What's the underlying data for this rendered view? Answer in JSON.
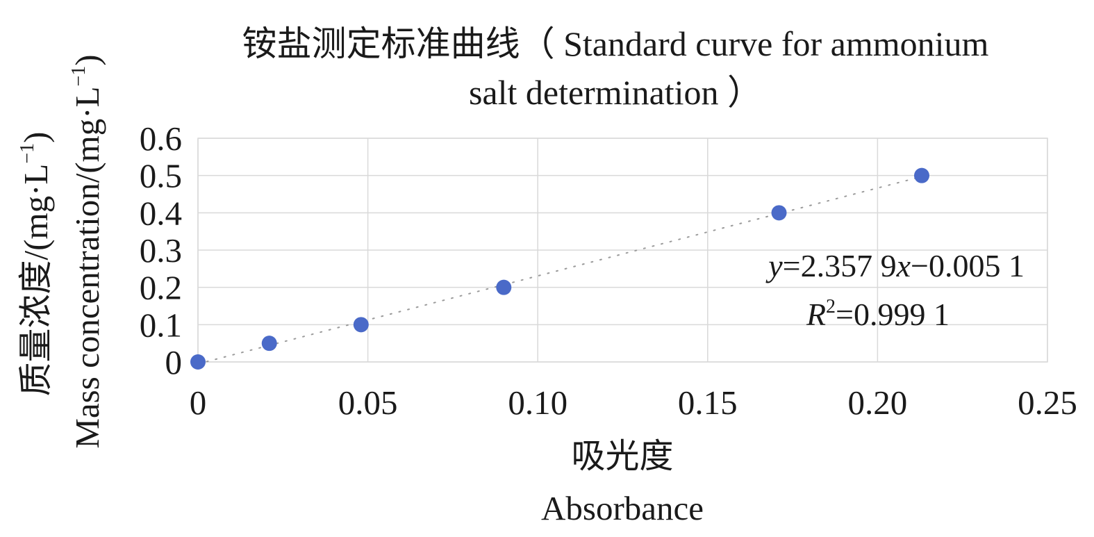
{
  "chart_data": {
    "type": "scatter",
    "title": "铵盐测定标准曲线（ Standard curve for ammonium salt determination ）",
    "title_lines": [
      "铵盐测定标准曲线（ Standard curve for ammonium",
      "salt determination ）"
    ],
    "xlabel": "吸光度 Absorbance",
    "xlabel_lines": [
      "吸光度",
      "Absorbance"
    ],
    "ylabel": "质量浓度/(mg·L⁻¹) Mass concentration/(mg·L⁻¹)",
    "ylabel_lines": {
      "line1": {
        "text": "质量浓度/(mg·L",
        "sup": "−1",
        "close": ")"
      },
      "line2": {
        "text": "Mass concentration/(mg·L",
        "sup": "−1",
        "close": ")"
      }
    },
    "xlim": [
      0,
      0.25
    ],
    "ylim": [
      0,
      0.6
    ],
    "x_ticks": [
      0,
      0.05,
      0.1,
      0.15,
      0.2,
      0.25
    ],
    "x_tick_labels": [
      "0",
      "0.05",
      "0.10",
      "0.15",
      "0.20",
      "0.25"
    ],
    "y_ticks": [
      0,
      0.1,
      0.2,
      0.3,
      0.4,
      0.5,
      0.6
    ],
    "y_tick_labels": [
      "0",
      "0.1",
      "0.2",
      "0.3",
      "0.4",
      "0.5",
      "0.6"
    ],
    "grid": true,
    "legend": "none",
    "point_color": "#4a6ac8",
    "trendline_color": "#9a9a9a",
    "series": [
      {
        "x": [
          0,
          0.021,
          0.048,
          0.09,
          0.171,
          0.213
        ],
        "y": [
          0,
          0.05,
          0.1,
          0.2,
          0.4,
          0.5
        ]
      }
    ],
    "trendline": {
      "type": "linear",
      "slope": 2.3579,
      "intercept": -0.0051,
      "equation": {
        "y": "y",
        "eq": "=2.357 9",
        "x": "x",
        "rest": "−0.005 1"
      },
      "r_squared": {
        "R": "R",
        "sup": "2",
        "value": "=0.999 1"
      }
    }
  }
}
